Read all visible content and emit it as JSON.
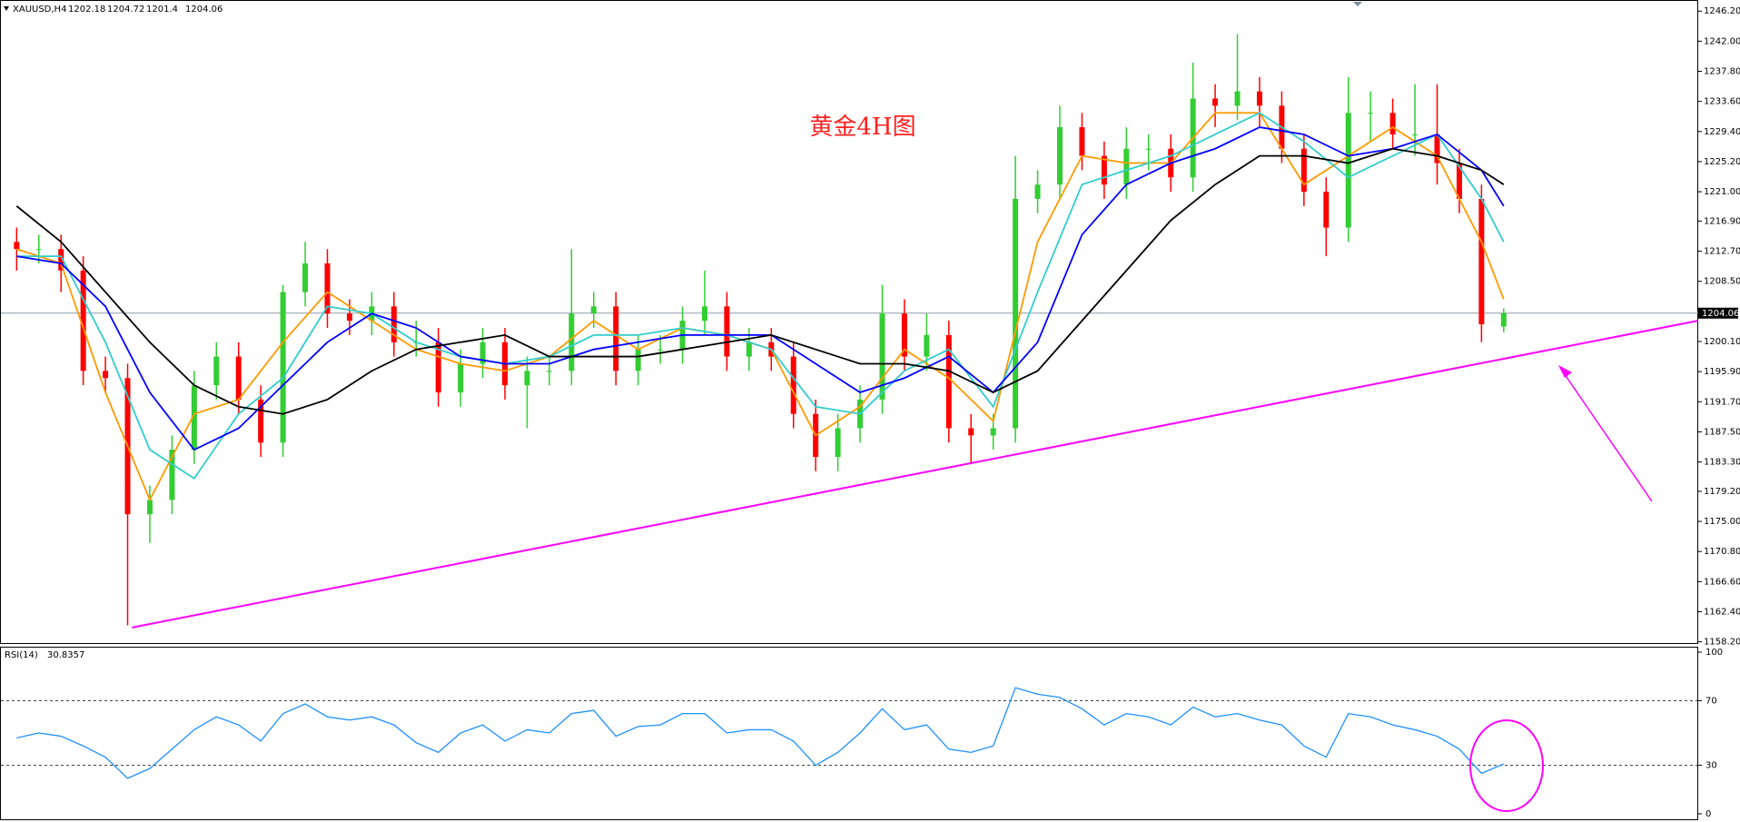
{
  "chart_data": {
    "type": "candlestick",
    "symbol": "XAUUSD,H4",
    "annotation": "黄金4H图",
    "up_color": "#32cd32",
    "down_color": "#ff0000",
    "open": [
      1214,
      1213,
      1213,
      1210,
      1196,
      1195,
      1176,
      1178,
      1185,
      1194,
      1198,
      1192,
      1186,
      1207,
      1211,
      1204,
      1203,
      1205,
      1200,
      1200,
      1193,
      1197,
      1200,
      1194,
      1196,
      1196,
      1204,
      1205,
      1196,
      1199,
      1199,
      1203,
      1205,
      1198,
      1200,
      1198,
      1190,
      1184,
      1188,
      1192,
      1204,
      1198,
      1201,
      1188,
      1187,
      1188,
      1220,
      1222,
      1230,
      1226,
      1222,
      1227,
      1227,
      1223,
      1234,
      1233,
      1235,
      1233,
      1227,
      1221,
      1216,
      1232,
      1232,
      1229,
      1229,
      1225,
      1220,
      1202.18
    ],
    "high": [
      1216,
      1215,
      1215,
      1212,
      1198,
      1197,
      1180,
      1187,
      1196,
      1200,
      1200,
      1194,
      1208,
      1214,
      1213,
      1206,
      1207,
      1207,
      1203,
      1202,
      1199,
      1202,
      1202,
      1198,
      1198,
      1213,
      1207,
      1207,
      1201,
      1201,
      1205,
      1210,
      1207,
      1202,
      1202,
      1200,
      1192,
      1190,
      1194,
      1208,
      1206,
      1204,
      1203,
      1190,
      1190,
      1226,
      1224,
      1233,
      1232,
      1228,
      1230,
      1229,
      1229,
      1239,
      1236,
      1243,
      1237,
      1235,
      1229,
      1223,
      1237,
      1235,
      1234,
      1236,
      1236,
      1227,
      1222,
      1204.72
    ],
    "low": [
      1210,
      1211,
      1207,
      1194,
      1193,
      1160.5,
      1172,
      1176,
      1183,
      1192,
      1190,
      1184,
      1184,
      1205,
      1202,
      1201,
      1201,
      1198,
      1198,
      1191,
      1191,
      1195,
      1192,
      1188,
      1194,
      1194,
      1202,
      1194,
      1194,
      1197,
      1197,
      1201,
      1196,
      1196,
      1196,
      1188,
      1182,
      1182,
      1186,
      1190,
      1196,
      1196,
      1186,
      1183,
      1185,
      1186,
      1218,
      1220,
      1224,
      1220,
      1220,
      1224,
      1221,
      1221,
      1230,
      1231,
      1230,
      1225,
      1219,
      1212,
      1214,
      1228,
      1227,
      1226,
      1222,
      1218,
      1200,
      1201.4
    ],
    "close": [
      1213,
      1213,
      1210,
      1196,
      1195,
      1176,
      1178,
      1185,
      1194,
      1198,
      1192,
      1186,
      1207,
      1211,
      1204,
      1203,
      1205,
      1200,
      1200,
      1193,
      1197,
      1200,
      1194,
      1196,
      1196,
      1204,
      1205,
      1196,
      1199,
      1199,
      1203,
      1205,
      1198,
      1200,
      1198,
      1190,
      1184,
      1188,
      1192,
      1204,
      1198,
      1201,
      1188,
      1187,
      1188,
      1220,
      1222,
      1230,
      1226,
      1222,
      1227,
      1227,
      1223,
      1234,
      1233,
      1235,
      1233,
      1227,
      1221,
      1216,
      1232,
      1232,
      1229,
      1229,
      1225,
      1220,
      1202.5,
      1204.06
    ],
    "ma_x": [
      0,
      2,
      4,
      6,
      8,
      10,
      12,
      14,
      16,
      18,
      20,
      22,
      24,
      26,
      28,
      30,
      32,
      34,
      36,
      38,
      40,
      42,
      44,
      46,
      48,
      50,
      52,
      54,
      56,
      58,
      60,
      62,
      64,
      66,
      67
    ],
    "ma_lines": [
      {
        "color": "#ff9900",
        "values": [
          1213,
          1211,
          1193,
          1178,
          1190,
          1192,
          1200,
          1207,
          1203,
          1199,
          1197,
          1196,
          1198,
          1203,
          1199,
          1202,
          1201,
          1199,
          1187,
          1191,
          1199,
          1195,
          1189,
          1214,
          1226,
          1225,
          1225,
          1232,
          1232,
          1222,
          1226,
          1230,
          1226,
          1214,
          1206
        ]
      },
      {
        "color": "#33cccc",
        "values": [
          1212,
          1212,
          1200,
          1185,
          1181,
          1190,
          1195,
          1205,
          1204,
          1200,
          1198,
          1197,
          1198,
          1201,
          1201,
          1202,
          1201,
          1199,
          1191,
          1190,
          1196,
          1199,
          1191,
          1207,
          1222,
          1224,
          1226,
          1229,
          1232,
          1228,
          1223,
          1226,
          1229,
          1220,
          1214
        ]
      },
      {
        "color": "#0000ff",
        "values": [
          1212,
          1211,
          1205,
          1193,
          1185,
          1188,
          1194,
          1200,
          1204,
          1202,
          1198,
          1197,
          1197,
          1199,
          1200,
          1201,
          1201,
          1201,
          1197,
          1193,
          1195,
          1198,
          1193,
          1200,
          1215,
          1222,
          1225,
          1227,
          1230,
          1229,
          1226,
          1227,
          1229,
          1224,
          1219
        ]
      },
      {
        "color": "#000000",
        "values": [
          1219,
          1214,
          1207,
          1200,
          1194,
          1191,
          1190,
          1192,
          1196,
          1199,
          1200,
          1201,
          1198,
          1198,
          1198,
          1199,
          1200,
          1201,
          1199,
          1197,
          1197,
          1196,
          1193,
          1196,
          1203,
          1210,
          1217,
          1222,
          1226,
          1226,
          1225,
          1227,
          1226,
          1224,
          1222
        ]
      }
    ],
    "trendline": {
      "color": "#ff00ff",
      "x": [
        5.2,
        75.75
      ],
      "values": [
        1160.2,
        1203.0
      ]
    },
    "ylim": [
      1157.9,
      1247.75
    ],
    "yticks": [
      {
        "value": 1246.2,
        "label": "1246.20"
      },
      {
        "value": 1242.0,
        "label": "1242.00"
      },
      {
        "value": 1237.8,
        "label": "1237.80"
      },
      {
        "value": 1233.6,
        "label": "1233.60"
      },
      {
        "value": 1229.4,
        "label": "1229.40"
      },
      {
        "value": 1225.2,
        "label": "1225.20"
      },
      {
        "value": 1221.0,
        "label": "1221.00"
      },
      {
        "value": 1216.9,
        "label": "1216.90"
      },
      {
        "value": 1212.7,
        "label": "1212.70"
      },
      {
        "value": 1208.5,
        "label": "1208.50"
      },
      {
        "value": 1200.1,
        "label": "1200.10"
      },
      {
        "value": 1195.9,
        "label": "1195.90"
      },
      {
        "value": 1191.7,
        "label": "1191.70"
      },
      {
        "value": 1187.5,
        "label": "1187.50"
      },
      {
        "value": 1183.3,
        "label": "1183.30"
      },
      {
        "value": 1179.2,
        "label": "1179.20"
      },
      {
        "value": 1175.0,
        "label": "1175.00"
      },
      {
        "value": 1170.8,
        "label": "1170.80"
      },
      {
        "value": 1166.6,
        "label": "1166.60"
      },
      {
        "value": 1162.4,
        "label": "1162.40"
      },
      {
        "value": 1158.2,
        "label": "1158.20"
      }
    ],
    "rsi": {
      "label": "RSI(14)",
      "color": "#1e90ff",
      "values": [
        47,
        50,
        48,
        42,
        35,
        22,
        28,
        40,
        52,
        60,
        55,
        45,
        62,
        68,
        60,
        58,
        60,
        55,
        44,
        38,
        50,
        55,
        45,
        52,
        50,
        62,
        64,
        48,
        54,
        55,
        62,
        62,
        50,
        52,
        52,
        45,
        30,
        38,
        50,
        65,
        52,
        55,
        40,
        38,
        42,
        78,
        74,
        72,
        65,
        55,
        62,
        60,
        55,
        66,
        60,
        62,
        58,
        55,
        42,
        35,
        62,
        60,
        55,
        52,
        48,
        40,
        25,
        30.8357
      ],
      "ylim": [
        -3.4,
        103.4
      ],
      "yticks": [
        0,
        30,
        70,
        100
      ]
    }
  }
}
